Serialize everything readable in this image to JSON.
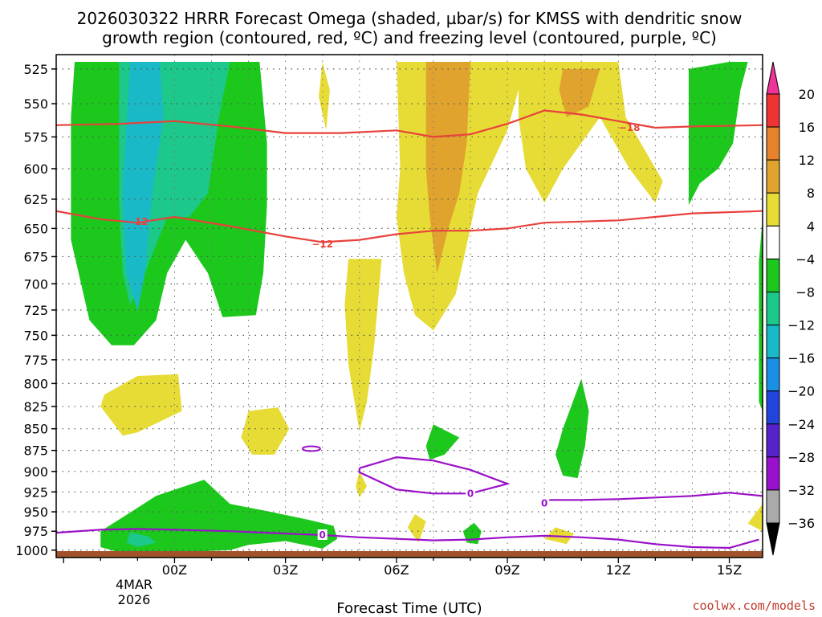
{
  "chart_data": {
    "type": "contour",
    "title_line1": "2026030322 HRRR Forecast Omega (shaded, µbar/s) for KMSS with dendritic snow",
    "title_line2": "growth region (contoured, red, ºC) and freezing level (contoured, purple, ºC)",
    "xlabel": "Forecast Time (UTC)",
    "ylabel": "Pressure (mb)",
    "credit": "coolwx.com/models",
    "x_hours_range": [
      -3.2,
      15.9
    ],
    "y_pressure_range": [
      1010,
      515
    ],
    "x_ticks": [
      {
        "hour": 0,
        "label": "00Z"
      },
      {
        "hour": 3,
        "label": "03Z"
      },
      {
        "hour": 6,
        "label": "06Z"
      },
      {
        "hour": 9,
        "label": "09Z"
      },
      {
        "hour": 12,
        "label": "12Z"
      },
      {
        "hour": 15,
        "label": "15Z"
      }
    ],
    "x_date_line1": "4MAR",
    "x_date_line2": "2026",
    "y_ticks": [
      525,
      550,
      575,
      600,
      625,
      650,
      675,
      700,
      725,
      750,
      775,
      800,
      825,
      850,
      875,
      900,
      925,
      950,
      975,
      1000
    ],
    "colorbar": {
      "labels": [
        "20",
        "16",
        "12",
        "8",
        "4",
        "−4",
        "−8",
        "−12",
        "−16",
        "−20",
        "−24",
        "−28",
        "−32",
        "−36"
      ],
      "bands": [
        {
          "lo": 16,
          "hi": 20,
          "color": "#ee3333"
        },
        {
          "lo": 12,
          "hi": 16,
          "color": "#e8822a"
        },
        {
          "lo": 8,
          "hi": 12,
          "color": "#e0a32e"
        },
        {
          "lo": 4,
          "hi": 8,
          "color": "#e6dc35"
        },
        {
          "lo": -4,
          "hi": 4,
          "color": "#ffffff"
        },
        {
          "lo": -8,
          "hi": -4,
          "color": "#1cc81c"
        },
        {
          "lo": -12,
          "hi": -8,
          "color": "#1cc88a"
        },
        {
          "lo": -16,
          "hi": -12,
          "color": "#1ab9c8"
        },
        {
          "lo": -20,
          "hi": -16,
          "color": "#1a8fe6"
        },
        {
          "lo": -24,
          "hi": -20,
          "color": "#2244dd"
        },
        {
          "lo": -28,
          "hi": -24,
          "color": "#5522cc"
        },
        {
          "lo": -32,
          "hi": -28,
          "color": "#9911cc"
        },
        {
          "lo": -36,
          "hi": -32,
          "color": "#aaaaaa"
        }
      ],
      "top_arrow_color": "#ee3399",
      "bottom_arrow_color": "#000000"
    },
    "red_contours": [
      {
        "value": -18,
        "label": "−18",
        "label_at": [
          12.3,
          568
        ],
        "points": [
          [
            -3.2,
            566
          ],
          [
            -1.5,
            565
          ],
          [
            0,
            563
          ],
          [
            1.5,
            567
          ],
          [
            3,
            572
          ],
          [
            4.5,
            572
          ],
          [
            6,
            570
          ],
          [
            7,
            575
          ],
          [
            8,
            573
          ],
          [
            9,
            565
          ],
          [
            10,
            555
          ],
          [
            11,
            558
          ],
          [
            12,
            563
          ],
          [
            13,
            568
          ],
          [
            14,
            567
          ],
          [
            15.9,
            566
          ]
        ]
      },
      {
        "value": -12,
        "label": "−12",
        "label_at": [
          -1.0,
          644
        ],
        "points": [
          [
            -3.2,
            635
          ],
          [
            -2,
            642
          ],
          [
            -1,
            645
          ],
          [
            0,
            640
          ],
          [
            1.5,
            648
          ],
          [
            3,
            657
          ],
          [
            4,
            662
          ],
          [
            5,
            660
          ],
          [
            6,
            655
          ],
          [
            7,
            652
          ],
          [
            8,
            652
          ],
          [
            9,
            650
          ],
          [
            10,
            645
          ],
          [
            11,
            644
          ],
          [
            12,
            643
          ],
          [
            13,
            640
          ],
          [
            14,
            637
          ],
          [
            15.9,
            635
          ]
        ]
      },
      {
        "value": -12,
        "label": "−12",
        "label_at": [
          4.0,
          664
        ],
        "points": []
      }
    ],
    "purple_contours": [
      {
        "value": 0,
        "label": "0",
        "label_at": [
          4.0,
          980
        ],
        "points": [
          [
            -3.2,
            977
          ],
          [
            -2,
            973
          ],
          [
            -1,
            972
          ],
          [
            0,
            973
          ],
          [
            1.5,
            975
          ],
          [
            3,
            978
          ],
          [
            4,
            980
          ],
          [
            5,
            983
          ],
          [
            6,
            985
          ],
          [
            7,
            987
          ],
          [
            8,
            986
          ],
          [
            9,
            983
          ],
          [
            10,
            981
          ],
          [
            11,
            983
          ],
          [
            12,
            986
          ],
          [
            13,
            992
          ],
          [
            14,
            996
          ],
          [
            15,
            997
          ],
          [
            15.8,
            986
          ]
        ]
      },
      {
        "value": 0,
        "label": "0",
        "label_at": [
          8.0,
          927
        ],
        "points": [
          [
            5.0,
            896
          ],
          [
            6.0,
            883
          ],
          [
            7.0,
            887
          ],
          [
            8.0,
            898
          ],
          [
            9.0,
            915
          ],
          [
            8.0,
            927
          ],
          [
            7.0,
            927
          ],
          [
            6.0,
            922
          ],
          [
            5.0,
            901
          ],
          [
            5.0,
            896
          ]
        ]
      },
      {
        "value": 0,
        "label": "0",
        "label_at": [
          10.0,
          939
        ],
        "points": [
          [
            10,
            935
          ],
          [
            11,
            935
          ],
          [
            12,
            934
          ],
          [
            13,
            932
          ],
          [
            14,
            930
          ],
          [
            15,
            926
          ],
          [
            15.9,
            930
          ]
        ]
      },
      {
        "value": 0,
        "label": "0",
        "label_at": [
          5.0,
          1009
        ],
        "points": [
          [
            2,
            1008
          ],
          [
            3,
            1008
          ],
          [
            4,
            1009
          ],
          [
            5,
            1010
          ],
          [
            6,
            1009
          ],
          [
            7,
            1008
          ],
          [
            8,
            1007
          ],
          [
            9,
            1006
          ]
        ]
      }
    ],
    "shaded_regions": [
      {
        "band": "green",
        "color": "#1cc81c",
        "points": [
          [
            -2.7,
            520
          ],
          [
            -1.5,
            520
          ],
          [
            1.5,
            520
          ],
          [
            2.3,
            520
          ],
          [
            2.5,
            580
          ],
          [
            2.5,
            630
          ],
          [
            2.4,
            690
          ],
          [
            2.2,
            730
          ],
          [
            1.3,
            732
          ],
          [
            0.9,
            690
          ],
          [
            0.3,
            660
          ],
          [
            -0.2,
            690
          ],
          [
            -0.5,
            735
          ],
          [
            -1.1,
            760
          ],
          [
            -1.7,
            760
          ],
          [
            -2.3,
            735
          ],
          [
            -2.8,
            660
          ],
          [
            -2.8,
            560
          ]
        ]
      },
      {
        "band": "teal",
        "color": "#1cc88a",
        "points": [
          [
            -1.5,
            520
          ],
          [
            1.5,
            520
          ],
          [
            1.2,
            560
          ],
          [
            0.9,
            620
          ],
          [
            0.4,
            640
          ],
          [
            -0.2,
            640
          ],
          [
            -0.8,
            690
          ],
          [
            -1.2,
            720
          ],
          [
            -1.4,
            690
          ],
          [
            -1.5,
            630
          ]
        ]
      },
      {
        "band": "cyan",
        "color": "#1ab9c8",
        "points": [
          [
            -1.2,
            520
          ],
          [
            -0.4,
            520
          ],
          [
            -0.3,
            560
          ],
          [
            -0.6,
            620
          ],
          [
            -0.8,
            690
          ],
          [
            -1.0,
            726
          ],
          [
            -1.3,
            690
          ],
          [
            -1.4,
            620
          ]
        ]
      },
      {
        "band": "green",
        "color": "#1cc81c",
        "points": [
          [
            -1.5,
            960
          ],
          [
            -0.5,
            930
          ],
          [
            0.8,
            910
          ],
          [
            1.5,
            940
          ],
          [
            2.6,
            950
          ],
          [
            3.6,
            960
          ],
          [
            4.3,
            968
          ],
          [
            4.4,
            985
          ],
          [
            4.0,
            998
          ],
          [
            3.0,
            988
          ],
          [
            2.0,
            993
          ],
          [
            1.5,
            1000
          ],
          [
            0,
            1003
          ],
          [
            -1.5,
            1003
          ],
          [
            -2.0,
            996
          ],
          [
            -2.0,
            975
          ]
        ]
      },
      {
        "band": "teal",
        "color": "#1cc88a",
        "points": [
          [
            -1.2,
            976
          ],
          [
            -0.7,
            982
          ],
          [
            -0.5,
            990
          ],
          [
            -1.0,
            996
          ],
          [
            -1.3,
            990
          ]
        ]
      },
      {
        "band": "green",
        "color": "#1cc81c",
        "points": [
          [
            13.9,
            525
          ],
          [
            15.0,
            520
          ],
          [
            15.5,
            520
          ],
          [
            15.3,
            540
          ],
          [
            15.1,
            580
          ],
          [
            14.7,
            600
          ],
          [
            14.2,
            612
          ],
          [
            13.9,
            630
          ]
        ]
      },
      {
        "band": "green",
        "color": "#1cc81c",
        "points": [
          [
            15.9,
            640
          ],
          [
            15.8,
            680
          ],
          [
            15.8,
            760
          ],
          [
            15.8,
            820
          ],
          [
            15.9,
            830
          ]
        ]
      },
      {
        "band": "green",
        "color": "#1cc81c",
        "points": [
          [
            7.0,
            845
          ],
          [
            7.7,
            860
          ],
          [
            7.3,
            880
          ],
          [
            6.9,
            886
          ],
          [
            6.8,
            870
          ]
        ]
      },
      {
        "band": "green",
        "color": "#1cc81c",
        "points": [
          [
            11.0,
            795
          ],
          [
            11.2,
            830
          ],
          [
            11.1,
            870
          ],
          [
            10.9,
            908
          ],
          [
            10.5,
            905
          ],
          [
            10.3,
            880
          ],
          [
            10.5,
            850
          ]
        ]
      },
      {
        "band": "green",
        "color": "#1cc81c",
        "points": [
          [
            8.1,
            964
          ],
          [
            8.3,
            975
          ],
          [
            8.2,
            992
          ],
          [
            7.9,
            990
          ],
          [
            7.8,
            975
          ]
        ]
      },
      {
        "band": "yellow",
        "color": "#e6dc35",
        "points": [
          [
            6.0,
            520
          ],
          [
            9.5,
            520
          ],
          [
            9.0,
            570
          ],
          [
            8.2,
            620
          ],
          [
            7.8,
            680
          ],
          [
            7.6,
            710
          ],
          [
            7.0,
            745
          ],
          [
            6.5,
            730
          ],
          [
            6.2,
            690
          ],
          [
            6.0,
            640
          ],
          [
            6.1,
            600
          ]
        ]
      },
      {
        "band": "orange",
        "color": "#e0a32e",
        "points": [
          [
            6.8,
            520
          ],
          [
            8.0,
            520
          ],
          [
            7.9,
            580
          ],
          [
            7.7,
            620
          ],
          [
            7.4,
            650
          ],
          [
            7.1,
            690
          ],
          [
            6.9,
            640
          ],
          [
            6.8,
            600
          ]
        ]
      },
      {
        "band": "yellow",
        "color": "#e6dc35",
        "points": [
          [
            9.3,
            520
          ],
          [
            12.0,
            520
          ],
          [
            12.2,
            560
          ],
          [
            13.2,
            610
          ],
          [
            13.0,
            628
          ],
          [
            12.3,
            600
          ],
          [
            11.5,
            560
          ],
          [
            10.5,
            600
          ],
          [
            10.0,
            628
          ],
          [
            9.5,
            600
          ],
          [
            9.3,
            560
          ]
        ]
      },
      {
        "band": "orange",
        "color": "#e0a32e",
        "points": [
          [
            10.5,
            525
          ],
          [
            11.5,
            525
          ],
          [
            11.2,
            552
          ],
          [
            10.6,
            560
          ],
          [
            10.4,
            540
          ]
        ]
      },
      {
        "band": "yellow",
        "color": "#e6dc35",
        "points": [
          [
            4.0,
            520
          ],
          [
            4.2,
            540
          ],
          [
            4.1,
            570
          ],
          [
            3.9,
            545
          ]
        ]
      },
      {
        "band": "yellow",
        "color": "#e6dc35",
        "points": [
          [
            4.7,
            677
          ],
          [
            5.6,
            677
          ],
          [
            5.4,
            760
          ],
          [
            5.2,
            820
          ],
          [
            5.0,
            853
          ],
          [
            4.7,
            780
          ],
          [
            4.6,
            720
          ]
        ]
      },
      {
        "band": "yellow",
        "color": "#e6dc35",
        "points": [
          [
            -1.9,
            812
          ],
          [
            -1.0,
            792
          ],
          [
            0.1,
            790
          ],
          [
            0.2,
            830
          ],
          [
            -1.0,
            854
          ],
          [
            -1.4,
            858
          ],
          [
            -2.0,
            825
          ]
        ]
      },
      {
        "band": "yellow",
        "color": "#e6dc35",
        "points": [
          [
            2.0,
            830
          ],
          [
            2.8,
            826
          ],
          [
            3.1,
            850
          ],
          [
            2.7,
            880
          ],
          [
            2.1,
            880
          ],
          [
            1.8,
            860
          ]
        ]
      },
      {
        "band": "yellow",
        "color": "#e6dc35",
        "points": [
          [
            5.0,
            900
          ],
          [
            5.2,
            918
          ],
          [
            5.0,
            932
          ],
          [
            4.9,
            918
          ]
        ]
      },
      {
        "band": "yellow",
        "color": "#e6dc35",
        "points": [
          [
            6.5,
            953
          ],
          [
            6.8,
            962
          ],
          [
            6.6,
            990
          ],
          [
            6.3,
            970
          ]
        ]
      },
      {
        "band": "yellow",
        "color": "#e6dc35",
        "points": [
          [
            10.3,
            970
          ],
          [
            10.8,
            978
          ],
          [
            10.6,
            992
          ],
          [
            10.0,
            985
          ]
        ]
      },
      {
        "band": "yellow",
        "color": "#e6dc35",
        "points": [
          [
            15.5,
            965
          ],
          [
            15.9,
            940
          ],
          [
            15.9,
            975
          ]
        ]
      }
    ],
    "ground_color": "#a0522d"
  }
}
